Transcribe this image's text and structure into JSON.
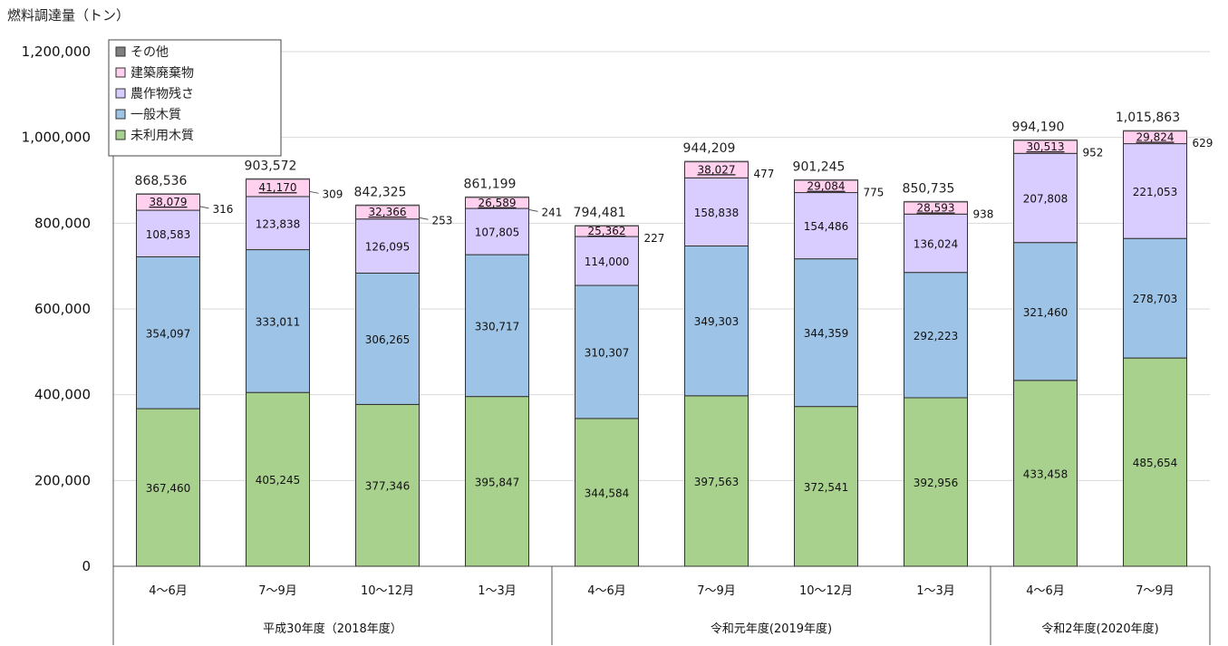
{
  "chart_data": {
    "type": "bar",
    "stacked": true,
    "ylabel": "燃料調達量（トン）",
    "ylim": [
      0,
      1200000
    ],
    "yticks": [
      "0",
      "200,000",
      "400,000",
      "600,000",
      "800,000",
      "1,000,000",
      "1,200,000"
    ],
    "grid": true,
    "legend_position": "top-left",
    "categories": [
      "4～6月",
      "7～9月",
      "10～12月",
      "1～3月",
      "4～6月",
      "7～9月",
      "10～12月",
      "1～3月",
      "4～6月",
      "7～9月"
    ],
    "groups": [
      {
        "label": "平成30年度（2018年度）",
        "start": 0,
        "end": 3
      },
      {
        "label": "令和元年度(2019年度)",
        "start": 4,
        "end": 7
      },
      {
        "label": "令和2年度(2020年度)",
        "start": 8,
        "end": 9
      }
    ],
    "series": [
      {
        "name": "未利用木質",
        "color": "#a9d18e",
        "values": [
          367460,
          405245,
          377346,
          395847,
          344584,
          397563,
          372541,
          392956,
          433458,
          485654
        ],
        "labels": [
          "367,460",
          "405,245",
          "377,346",
          "395,847",
          "344,584",
          "397,563",
          "372,541",
          "392,956",
          "433,458",
          "485,654"
        ]
      },
      {
        "name": "一般木質",
        "color": "#9dc3e6",
        "values": [
          354097,
          333011,
          306265,
          330717,
          310307,
          349303,
          344359,
          292223,
          321460,
          278703
        ],
        "labels": [
          "354,097",
          "333,011",
          "306,265",
          "330,717",
          "310,307",
          "349,303",
          "344,359",
          "292,223",
          "321,460",
          "278,703"
        ]
      },
      {
        "name": "農作物残さ",
        "color": "#d9ccff",
        "values": [
          108583,
          123838,
          126095,
          107805,
          114000,
          158838,
          154486,
          136024,
          207808,
          221053
        ],
        "labels": [
          "108,583",
          "123,838",
          "126,095",
          "107,805",
          "114,000",
          "158,838",
          "154,486",
          "136,024",
          "207,808",
          "221,053"
        ]
      },
      {
        "name": "建築廃棄物",
        "color": "#ffd1ee",
        "values": [
          38079,
          41170,
          32366,
          26589,
          25362,
          38027,
          29084,
          28593,
          30513,
          29824
        ],
        "labels": [
          "38,079",
          "41,170",
          "32,366",
          "26,589",
          "25,362",
          "38,027",
          "29,084",
          "28,593",
          "30,513",
          "29,824"
        ]
      },
      {
        "name": "その他",
        "color": "#808080",
        "values": [
          316,
          309,
          253,
          241,
          227,
          477,
          775,
          938,
          952,
          629
        ],
        "labels": [
          "316",
          "309",
          "253",
          "241",
          "227",
          "477",
          "775",
          "938",
          "952",
          "629"
        ]
      }
    ],
    "totals": [
      "868,536",
      "903,572",
      "842,325",
      "861,199",
      "794,481",
      "944,209",
      "901,245",
      "850,735",
      "994,190",
      "1,015,863"
    ],
    "legend_order": [
      "その他",
      "建築廃棄物",
      "農作物残さ",
      "一般木質",
      "未利用木質"
    ]
  }
}
